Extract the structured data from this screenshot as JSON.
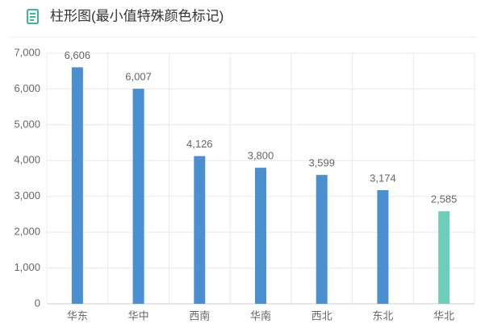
{
  "chart_data": {
    "type": "bar",
    "title": "柱形图(最小值特殊颜色标记)",
    "categories": [
      "华东",
      "华中",
      "西南",
      "华南",
      "西北",
      "东北",
      "华北"
    ],
    "values": [
      6606,
      6007,
      4126,
      3800,
      3599,
      3174,
      2585
    ],
    "value_labels": [
      "6,606",
      "6,007",
      "4,126",
      "3,800",
      "3,599",
      "3,174",
      "2,585"
    ],
    "colors": [
      "#4a8fd0",
      "#4a8fd0",
      "#4a8fd0",
      "#4a8fd0",
      "#4a8fd0",
      "#4a8fd0",
      "#6dcfb8"
    ],
    "ylim": [
      0,
      7000
    ],
    "yticks": [
      0,
      {
        "value": 1000,
        "label": "1,000"
      },
      {
        "value": 2000,
        "label": "2,000"
      },
      {
        "value": 3000,
        "label": "3,000"
      },
      {
        "value": 4000,
        "label": "4,000"
      },
      {
        "value": 5000,
        "label": "5,000"
      },
      {
        "value": 6000,
        "label": "6,000"
      },
      {
        "value": 7000,
        "label": "7,000"
      }
    ],
    "grid": true
  }
}
